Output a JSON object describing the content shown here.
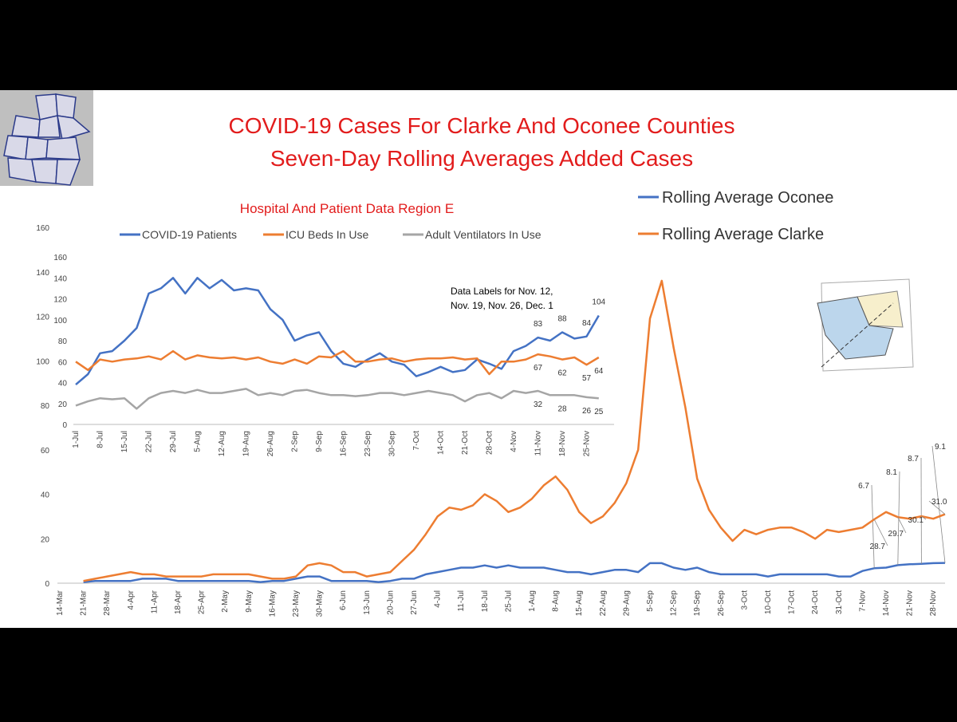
{
  "chart_data": [
    {
      "type": "line",
      "title": "COVID-19 Cases For Clarke And Oconee Counties",
      "subtitle": "Seven-Day Rolling Averages Added Cases",
      "categories": [
        "14-Mar",
        null,
        "21-Mar",
        null,
        "28-Mar",
        null,
        "4-Apr",
        null,
        "11-Apr",
        null,
        "18-Apr",
        null,
        "25-Apr",
        null,
        "2-May",
        null,
        "9-May",
        null,
        "16-May",
        null,
        "23-May",
        null,
        "30-May",
        null,
        "6-Jun",
        null,
        "13-Jun",
        null,
        "20-Jun",
        null,
        "27-Jun",
        null,
        "4-Jul",
        null,
        "11-Jul",
        null,
        "18-Jul",
        null,
        "25-Jul",
        null,
        "1-Aug",
        null,
        "8-Aug",
        null,
        "15-Aug",
        null,
        "22-Aug",
        null,
        "29-Aug",
        null,
        "5-Sep",
        null,
        "12-Sep",
        null,
        "19-Sep",
        null,
        "26-Sep",
        null,
        "3-Oct",
        null,
        "10-Oct",
        null,
        "17-Oct",
        null,
        "24-Oct",
        null,
        "31-Oct",
        null,
        "7-Nov",
        null,
        "14-Nov",
        null,
        "21-Nov",
        null,
        "28-Nov",
        null
      ],
      "series": [
        {
          "name": "Rolling Average Oconee",
          "color": "#4472c4",
          "values": [
            null,
            null,
            0.5,
            1,
            1,
            1,
            1,
            2,
            2,
            2,
            1,
            1,
            1,
            1,
            1,
            1,
            1,
            0.5,
            1,
            1,
            2,
            3,
            3,
            1,
            1,
            1,
            1,
            0.5,
            1,
            2,
            2,
            4,
            5,
            6,
            7,
            7,
            8,
            7,
            8,
            7,
            7,
            7,
            6,
            5,
            5,
            4,
            5,
            6,
            6,
            5,
            9,
            9,
            7,
            6,
            7,
            5,
            4,
            4,
            4,
            4,
            3,
            4,
            4,
            4,
            4,
            4,
            3,
            3,
            5.5,
            6.7,
            7,
            8.1,
            8.5,
            8.7,
            9,
            9.1
          ],
          "value_labels": [
            null,
            null,
            null,
            null,
            null,
            null,
            null,
            null,
            null,
            null,
            null,
            null,
            null,
            null,
            null,
            null,
            null,
            null,
            null,
            null,
            null,
            null,
            null,
            null,
            null,
            null,
            null,
            null,
            null,
            null,
            null,
            null,
            null,
            null,
            null,
            null,
            null,
            null,
            null,
            null,
            null,
            null,
            null,
            null,
            null,
            null,
            null,
            null,
            null,
            null,
            null,
            null,
            null,
            null,
            null,
            null,
            null,
            null,
            null,
            null,
            null,
            null,
            null,
            null,
            null,
            null,
            null,
            null,
            null,
            "6.7",
            null,
            "8.1",
            null,
            "8.7",
            null,
            "9.1"
          ]
        },
        {
          "name": "Rolling Average Clarke",
          "color": "#ed7d31",
          "values": [
            null,
            null,
            1,
            2,
            3,
            4,
            5,
            4,
            4,
            3,
            3,
            3,
            3,
            4,
            4,
            4,
            4,
            3,
            2,
            2,
            3,
            8,
            9,
            8,
            5,
            5,
            3,
            4,
            5,
            10,
            15,
            22,
            30,
            34,
            33,
            35,
            40,
            37,
            32,
            34,
            38,
            44,
            48,
            42,
            32,
            27,
            30,
            36,
            45,
            60,
            119,
            136,
            106,
            79,
            47,
            33,
            25,
            19,
            24,
            22,
            24,
            25,
            25,
            23,
            20,
            24,
            23,
            24,
            25,
            28.7,
            32,
            29.7,
            29,
            30.1,
            29,
            31
          ],
          "value_labels": [
            null,
            null,
            null,
            null,
            null,
            null,
            null,
            null,
            null,
            null,
            null,
            null,
            null,
            null,
            null,
            null,
            null,
            null,
            null,
            null,
            null,
            null,
            null,
            null,
            null,
            null,
            null,
            null,
            null,
            null,
            null,
            null,
            null,
            null,
            null,
            null,
            null,
            null,
            null,
            null,
            null,
            null,
            null,
            null,
            null,
            null,
            null,
            null,
            null,
            null,
            null,
            null,
            null,
            null,
            null,
            null,
            null,
            null,
            null,
            null,
            null,
            null,
            null,
            null,
            null,
            null,
            null,
            null,
            null,
            "28.7",
            null,
            "29.7",
            null,
            "30.1",
            null,
            "31.0"
          ]
        }
      ],
      "ylim": [
        0,
        160
      ],
      "yticks": [
        0,
        20,
        40,
        60,
        80,
        100,
        120,
        140,
        160
      ],
      "legend": "top-right"
    },
    {
      "type": "line",
      "title": "Hospital And Patient Data Region E",
      "annotation": [
        "Data Labels for Nov. 12,",
        "Nov. 19, Nov. 26, Dec. 1"
      ],
      "categories": [
        "1-Jul",
        null,
        "8-Jul",
        null,
        "15-Jul",
        null,
        "22-Jul",
        null,
        "29-Jul",
        null,
        "5-Aug",
        null,
        "12-Aug",
        null,
        "19-Aug",
        null,
        "26-Aug",
        null,
        "2-Sep",
        null,
        "9-Sep",
        null,
        "16-Sep",
        null,
        "23-Sep",
        null,
        "30-Sep",
        null,
        "7-Oct",
        null,
        "14-Oct",
        null,
        "21-Oct",
        null,
        "28-Oct",
        null,
        "4-Nov",
        null,
        "11-Nov",
        null,
        "18-Nov",
        null,
        "25-Nov",
        null
      ],
      "series": [
        {
          "name": "COVID-19 Patients",
          "color": "#4472c4",
          "values": [
            38,
            48,
            68,
            70,
            80,
            92,
            125,
            130,
            140,
            125,
            140,
            130,
            138,
            128,
            130,
            128,
            110,
            100,
            80,
            85,
            88,
            70,
            58,
            55,
            62,
            68,
            60,
            57,
            46,
            50,
            55,
            50,
            52,
            62,
            58,
            53,
            70,
            75,
            83,
            80,
            88,
            82,
            84,
            104
          ],
          "value_labels": [
            null,
            null,
            null,
            null,
            null,
            null,
            null,
            null,
            null,
            null,
            null,
            null,
            null,
            null,
            null,
            null,
            null,
            null,
            null,
            null,
            null,
            null,
            null,
            null,
            null,
            null,
            null,
            null,
            null,
            null,
            null,
            null,
            null,
            null,
            null,
            null,
            null,
            null,
            "83",
            null,
            "88",
            null,
            "84",
            "104"
          ]
        },
        {
          "name": "ICU Beds In Use",
          "color": "#ed7d31",
          "values": [
            60,
            52,
            62,
            60,
            62,
            63,
            65,
            62,
            70,
            62,
            66,
            64,
            63,
            64,
            62,
            64,
            60,
            58,
            62,
            58,
            65,
            64,
            70,
            60,
            60,
            62,
            63,
            60,
            62,
            63,
            63,
            64,
            62,
            63,
            48,
            60,
            60,
            62,
            67,
            65,
            62,
            64,
            57,
            64
          ],
          "value_labels": [
            null,
            null,
            null,
            null,
            null,
            null,
            null,
            null,
            null,
            null,
            null,
            null,
            null,
            null,
            null,
            null,
            null,
            null,
            null,
            null,
            null,
            null,
            null,
            null,
            null,
            null,
            null,
            null,
            null,
            null,
            null,
            null,
            null,
            null,
            null,
            null,
            null,
            null,
            "67",
            null,
            "62",
            null,
            "57",
            "64"
          ]
        },
        {
          "name": "Adult Ventilators In Use",
          "color": "#a5a5a5",
          "values": [
            18,
            22,
            25,
            24,
            25,
            15,
            25,
            30,
            32,
            30,
            33,
            30,
            30,
            32,
            34,
            28,
            30,
            28,
            32,
            33,
            30,
            28,
            28,
            27,
            28,
            30,
            30,
            28,
            30,
            32,
            30,
            28,
            22,
            28,
            30,
            25,
            32,
            30,
            32,
            28,
            28,
            28,
            26,
            25
          ],
          "value_labels": [
            null,
            null,
            null,
            null,
            null,
            null,
            null,
            null,
            null,
            null,
            null,
            null,
            null,
            null,
            null,
            null,
            null,
            null,
            null,
            null,
            null,
            null,
            null,
            null,
            null,
            null,
            null,
            null,
            null,
            null,
            null,
            null,
            null,
            null,
            null,
            null,
            null,
            null,
            "32",
            null,
            "28",
            null,
            "26",
            "25"
          ]
        }
      ],
      "ylim": [
        0,
        160
      ],
      "yticks": [
        0,
        20,
        40,
        60,
        80,
        100,
        120,
        140,
        160
      ],
      "legend": "top"
    }
  ]
}
